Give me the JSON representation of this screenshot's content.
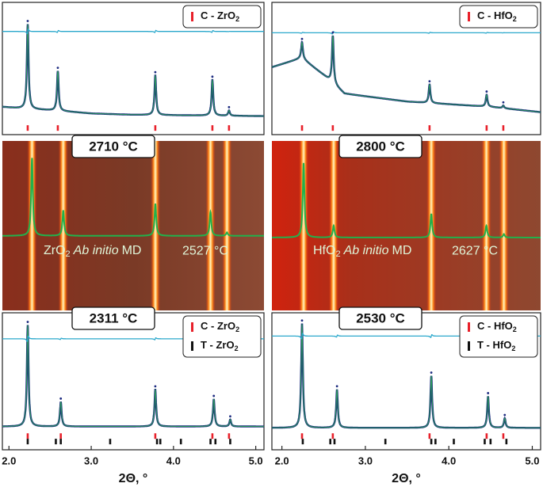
{
  "chart_data": [
    {
      "type": "xrd",
      "xlim": [
        1.92,
        5.1
      ],
      "ylim": [
        0,
        1
      ],
      "background": {
        "x": [
          1.92,
          2.1,
          2.6,
          3.0,
          3.5,
          5.1
        ],
        "values": [
          0.21,
          0.2,
          0.18,
          0.16,
          0.15,
          0.14
        ]
      },
      "peaks": {
        "x": [
          2.228,
          2.594,
          3.779,
          4.473,
          4.675
        ],
        "values": [
          0.64,
          0.3,
          0.3,
          0.27,
          0.04
        ]
      },
      "difference_level": 0.78,
      "legend": [
        {
          "name": [
            "C - ZrO",
            "2"
          ],
          "color": "#e8202a",
          "ticks": [
            2.228,
            2.594,
            3.779,
            4.473,
            4.675
          ],
          "tick_level": 0.05
        }
      ]
    },
    {
      "type": "xrd",
      "xlim": [
        1.88,
        5.1
      ],
      "ylim": [
        0,
        1
      ],
      "background": {
        "x": [
          1.88,
          2.24,
          2.5,
          2.75,
          3.5,
          4.5,
          5.1
        ],
        "values": [
          0.51,
          0.58,
          0.45,
          0.31,
          0.25,
          0.21,
          0.17
        ]
      },
      "peaks": {
        "x": [
          2.241,
          2.61,
          3.769,
          4.453,
          4.653
        ],
        "values": [
          0.12,
          0.36,
          0.14,
          0.09,
          0.02
        ]
      },
      "difference_level": 0.77,
      "legend": [
        {
          "name": [
            "C - HfO",
            "2"
          ],
          "color": "#e8202a",
          "ticks": [
            2.241,
            2.61,
            3.769,
            4.453,
            4.653
          ],
          "tick_level": 0.05
        }
      ]
    },
    {
      "type": "heatmap",
      "label": "2710 °C",
      "xlim": [
        1.92,
        5.1
      ],
      "ylim": [
        0,
        1
      ],
      "background_level": 0.44,
      "peaks": {
        "x": [
          2.28,
          2.66,
          3.78,
          4.45,
          4.65
        ],
        "values": [
          0.46,
          0.15,
          0.19,
          0.14,
          0.02
        ]
      },
      "annotation": {
        "formula": [
          "ZrO",
          "2"
        ],
        "method_italic": "Ab initio",
        "method": "MD",
        "temperature": "2527 °C"
      }
    },
    {
      "type": "heatmap",
      "label": "2800 °C",
      "xlim": [
        1.88,
        5.1
      ],
      "ylim": [
        0,
        1
      ],
      "background_level": 0.43,
      "peaks": {
        "x": [
          2.26,
          2.62,
          3.79,
          4.45,
          4.66
        ],
        "values": [
          0.44,
          0.07,
          0.14,
          0.07,
          0.02
        ]
      },
      "annotation": {
        "formula": [
          "HfO",
          "2"
        ],
        "method_italic": "Ab initio",
        "method": "MD",
        "temperature": "2627 °C"
      }
    },
    {
      "type": "xrd",
      "label": "2311 °C",
      "xlim": [
        1.92,
        5.1
      ],
      "ylim": [
        0,
        1
      ],
      "background": {
        "x": [
          1.92,
          5.1
        ],
        "values": [
          0.17,
          0.17
        ]
      },
      "peaks": {
        "x": [
          2.228,
          2.63,
          3.779,
          4.49,
          4.69
        ],
        "values": [
          0.74,
          0.18,
          0.27,
          0.2,
          0.05
        ]
      },
      "difference_level": 0.81,
      "legend": [
        {
          "name": [
            "C - ZrO",
            "2"
          ],
          "color": "#e8202a",
          "ticks": [
            2.228,
            2.63,
            3.779,
            4.473,
            4.675
          ],
          "tick_level": 0.1
        },
        {
          "name": [
            "T - ZrO",
            "2"
          ],
          "color": "#111111",
          "ticks": [
            2.228,
            2.57,
            2.63,
            3.23,
            3.8,
            3.84,
            4.09,
            4.45,
            4.51,
            4.69
          ],
          "tick_level": 0.06
        }
      ],
      "xticks": [
        {
          "value": 2,
          "label": "2.0"
        },
        {
          "value": 3,
          "label": "3.0"
        },
        {
          "value": 4,
          "label": "4.0"
        },
        {
          "value": 5,
          "label": "5.0"
        }
      ],
      "xlabel": "2Θ, °"
    },
    {
      "type": "xrd",
      "label": "2530 °C",
      "xlim": [
        1.88,
        5.1
      ],
      "ylim": [
        0,
        1
      ],
      "background": {
        "x": [
          1.88,
          5.1
        ],
        "values": [
          0.16,
          0.16
        ]
      },
      "peaks": {
        "x": [
          2.241,
          2.66,
          3.79,
          4.47,
          4.67
        ],
        "values": [
          0.76,
          0.28,
          0.38,
          0.23,
          0.07
        ]
      },
      "difference_level": 0.83,
      "legend": [
        {
          "name": [
            "C - HfO",
            "2"
          ],
          "color": "#e8202a",
          "ticks": [
            2.241,
            2.61,
            3.769,
            4.453,
            4.653
          ],
          "tick_level": 0.1
        },
        {
          "name": [
            "T - HfO",
            "2"
          ],
          "color": "#111111",
          "ticks": [
            2.25,
            2.58,
            2.63,
            3.24,
            3.79,
            3.84,
            4.06,
            4.43,
            4.5,
            4.69
          ],
          "tick_level": 0.06
        }
      ],
      "xticks": [
        {
          "value": 2,
          "label": "2.0"
        },
        {
          "value": 3,
          "label": "3.0"
        },
        {
          "value": 4,
          "label": "4.0"
        },
        {
          "value": 5,
          "label": "5.0"
        }
      ],
      "xlabel": "2Θ, °"
    }
  ]
}
